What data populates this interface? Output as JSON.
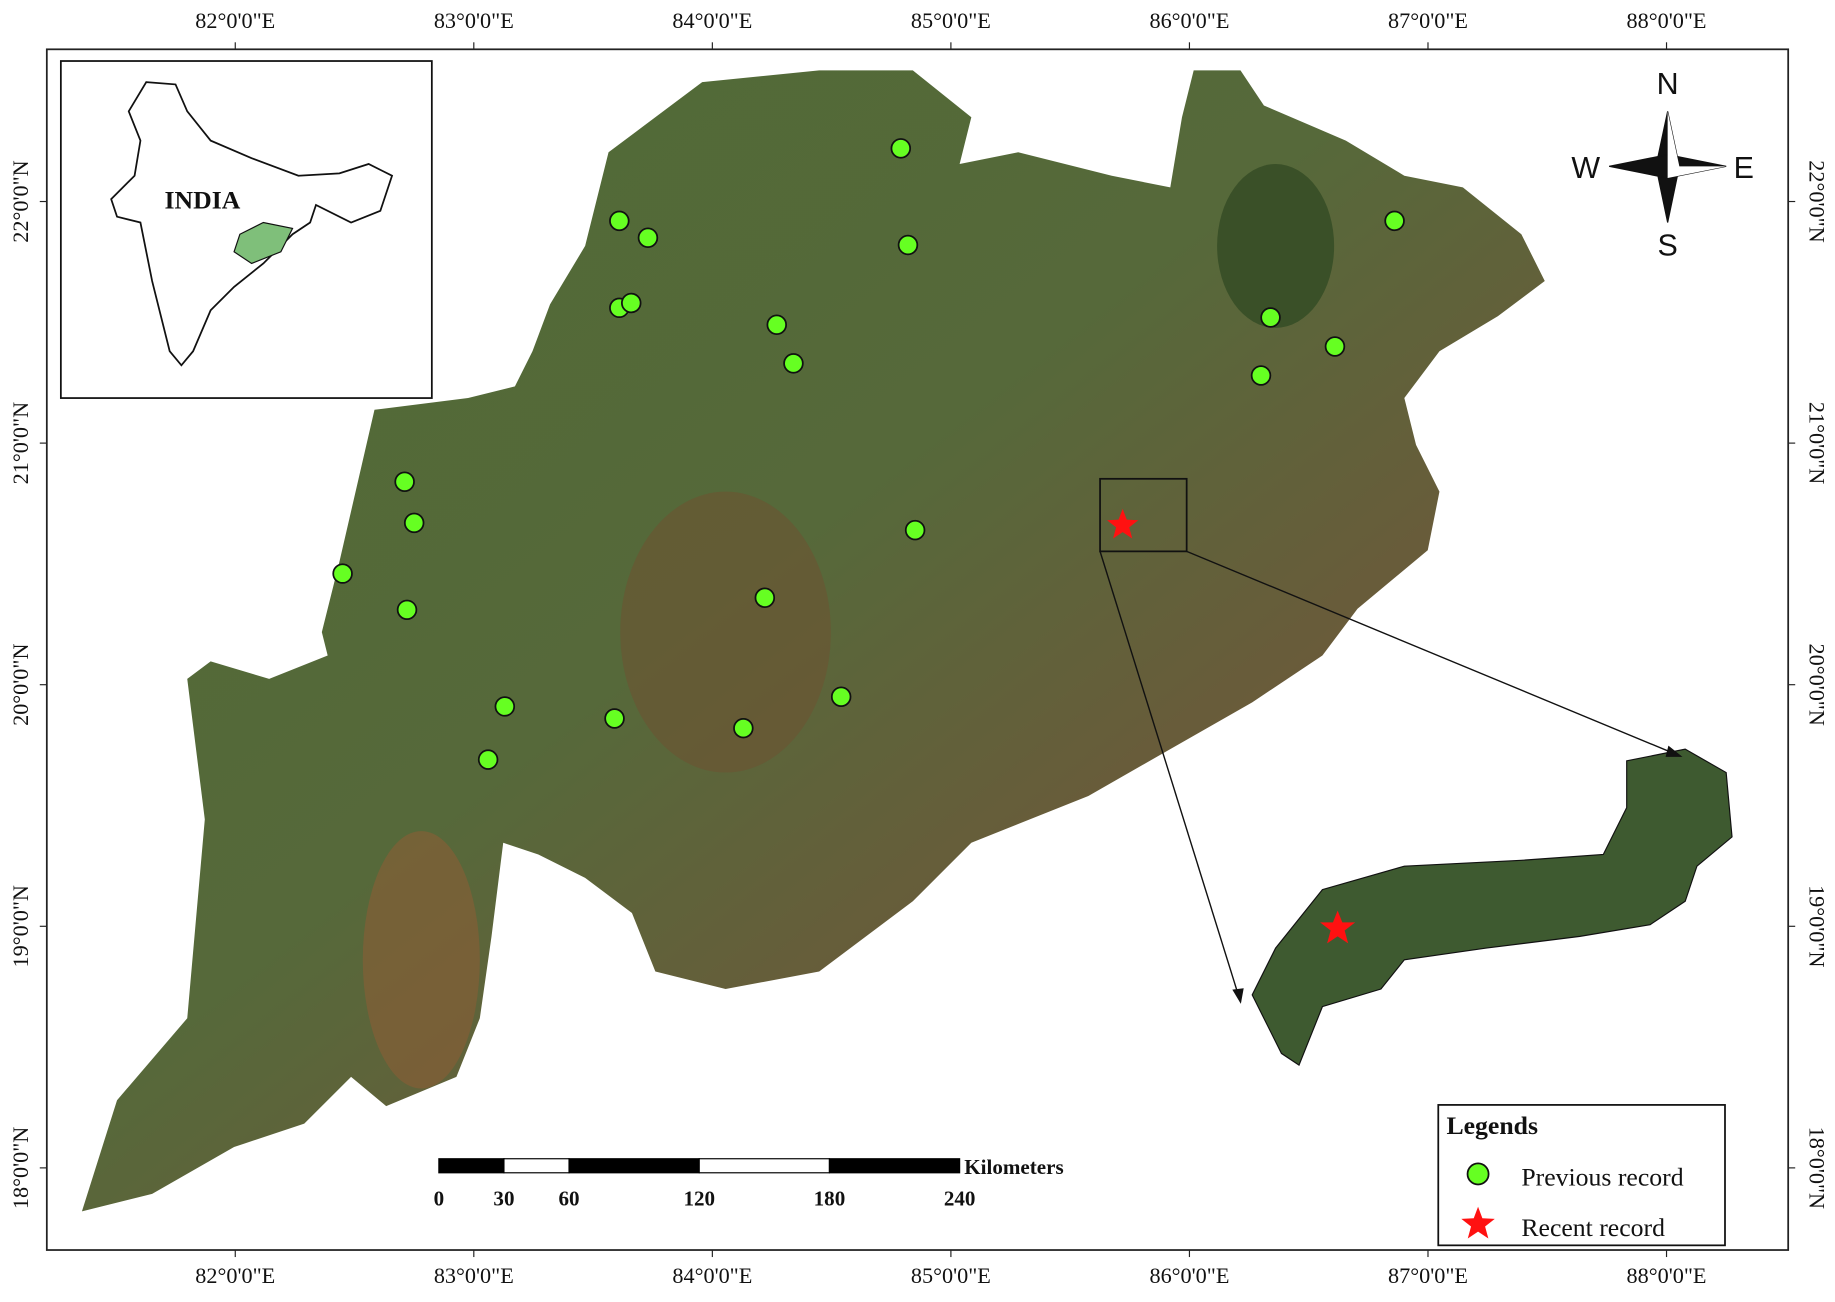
{
  "chart_data": {
    "type": "map",
    "xlim": [
      81.21,
      88.51
    ],
    "ylim": [
      17.66,
      22.63
    ],
    "xticks": [
      {
        "value": 82,
        "label": "82°0'0\"E"
      },
      {
        "value": 83,
        "label": "83°0'0\"E"
      },
      {
        "value": 84,
        "label": "84°0'0\"E"
      },
      {
        "value": 85,
        "label": "85°0'0\"E"
      },
      {
        "value": 86,
        "label": "86°0'0\"E"
      },
      {
        "value": 87,
        "label": "87°0'0\"E"
      },
      {
        "value": 88,
        "label": "88°0'0\"E"
      }
    ],
    "yticks": [
      {
        "value": 18,
        "label": "18°0'0\"N"
      },
      {
        "value": 19,
        "label": "19°0'0\"N"
      },
      {
        "value": 20,
        "label": "20°0'0\"N"
      },
      {
        "value": 21,
        "label": "21°0'0\"N"
      },
      {
        "value": 22,
        "label": "22°0'0\"N"
      }
    ],
    "inset_label": "INDIA",
    "compass": {
      "n": "N",
      "s": "S",
      "e": "E",
      "w": "W"
    },
    "scale_bar": {
      "unit": "Kilometers",
      "ticks": [
        0,
        30,
        60,
        120,
        180,
        240
      ]
    },
    "legend_title": "Legends",
    "series": [
      {
        "name": "Previous record",
        "color": "#66ff22",
        "x": [
          84.79,
          83.61,
          83.73,
          84.82,
          83.61,
          83.66,
          84.27,
          84.34,
          86.86,
          86.34,
          86.61,
          86.3,
          82.71,
          82.75,
          82.45,
          82.72,
          84.85,
          84.22,
          83.13,
          83.59,
          84.13,
          84.54,
          83.06
        ],
        "values": [
          22.22,
          21.92,
          21.85,
          21.82,
          21.56,
          21.58,
          21.49,
          21.33,
          21.92,
          21.52,
          21.4,
          21.28,
          20.84,
          20.67,
          20.46,
          20.31,
          20.64,
          20.36,
          19.91,
          19.86,
          19.82,
          19.95,
          19.69
        ]
      },
      {
        "name": "Recent record",
        "color": "#ff1111",
        "x": [
          85.72
        ],
        "values": [
          20.66
        ]
      }
    ]
  }
}
